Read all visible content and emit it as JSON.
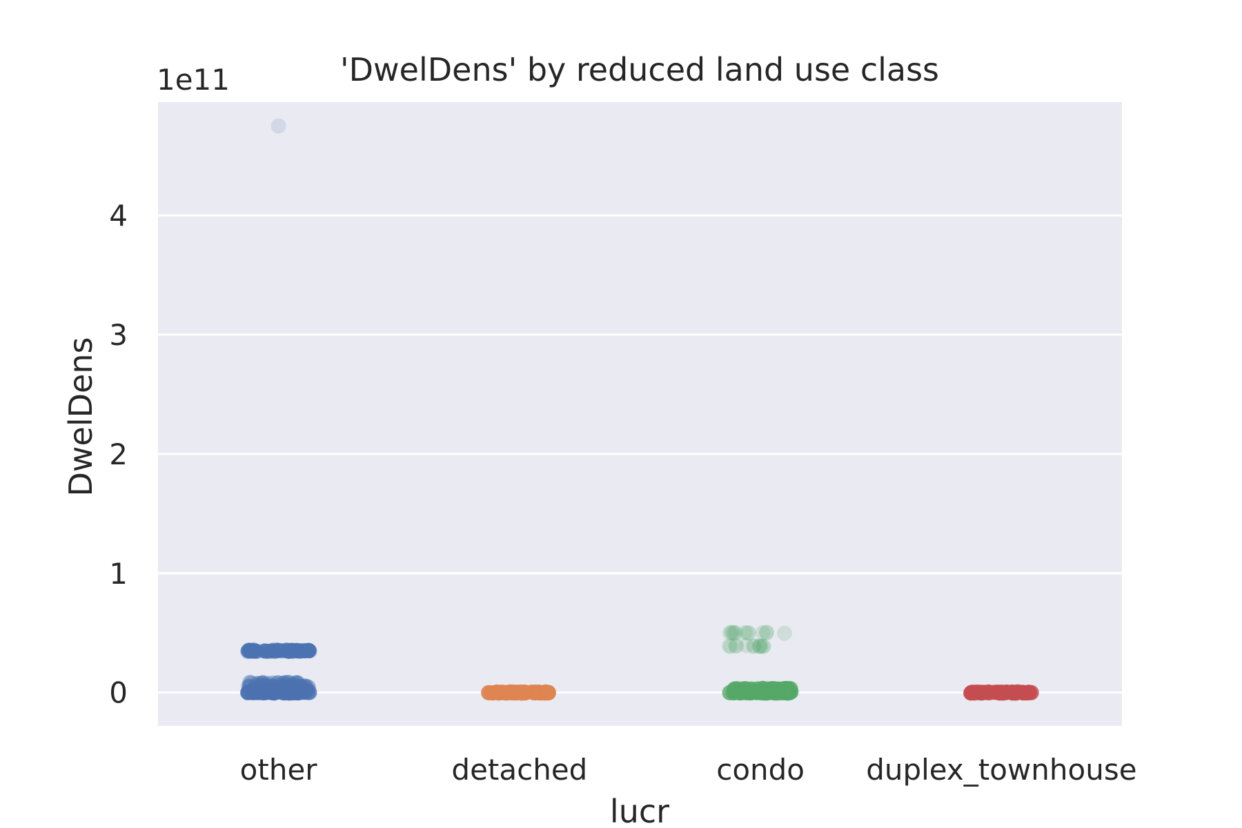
{
  "chart_data": {
    "type": "scatter",
    "title": "'DwelDens' by reduced land use class",
    "xlabel": "lucr",
    "ylabel": "DwelDens",
    "y_offset_label": "1e11",
    "categories": [
      "other",
      "detached",
      "condo",
      "duplex_townhouse"
    ],
    "yticks": [
      0,
      1,
      2,
      3,
      4
    ],
    "ylim": [
      -0.28,
      4.95
    ],
    "grid": true,
    "background": "#eaeaf2",
    "series": [
      {
        "category": "other",
        "color": "#4c72b0",
        "points": [
          {
            "y": 0.0,
            "count": 60,
            "alpha": 0.7
          },
          {
            "y": 0.02,
            "count": 40,
            "alpha": 0.6
          },
          {
            "y": 0.05,
            "count": 30,
            "alpha": 0.5
          },
          {
            "y": 0.08,
            "count": 20,
            "alpha": 0.4
          },
          {
            "y": 0.35,
            "count": 40,
            "alpha": 0.7
          },
          {
            "y": 4.75,
            "count": 1,
            "alpha": 0.15
          }
        ]
      },
      {
        "category": "detached",
        "color": "#dd8452",
        "points": [
          {
            "y": 0.0,
            "count": 60,
            "alpha": 0.8
          }
        ]
      },
      {
        "category": "condo",
        "color": "#55a868",
        "points": [
          {
            "y": 0.0,
            "count": 60,
            "alpha": 0.8
          },
          {
            "y": 0.03,
            "count": 40,
            "alpha": 0.6
          },
          {
            "y": 0.39,
            "count": 12,
            "alpha": 0.18
          },
          {
            "y": 0.5,
            "count": 12,
            "alpha": 0.18
          }
        ]
      },
      {
        "category": "duplex_townhouse",
        "color": "#c44e52",
        "points": [
          {
            "y": 0.0,
            "count": 60,
            "alpha": 0.8
          }
        ]
      }
    ]
  }
}
